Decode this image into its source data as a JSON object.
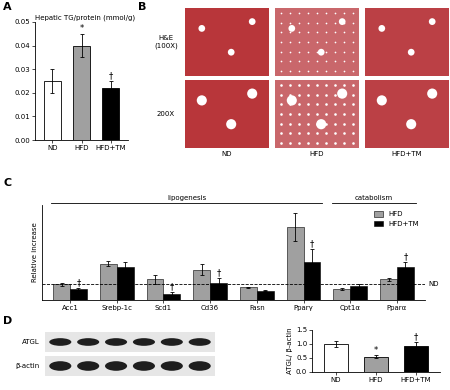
{
  "panel_labels": [
    "A",
    "B",
    "C",
    "D"
  ],
  "chart_data": [
    {
      "type": "bar",
      "title": "Hepatic TG/protein (mmol/g)",
      "categories": [
        "ND",
        "HFD",
        "HFD+TM"
      ],
      "values": [
        0.025,
        0.04,
        0.022
      ],
      "errors": [
        0.005,
        0.005,
        0.003
      ],
      "colors": [
        "#ffffff",
        "#a0a0a0",
        "#000000"
      ],
      "ylim": [
        0,
        0.05
      ],
      "yticks": [
        {
          "value": 0,
          "label": "0.00"
        },
        {
          "value": 0.01,
          "label": "0.01"
        },
        {
          "value": 0.02,
          "label": "0.02"
        },
        {
          "value": 0.03,
          "label": "0.03"
        },
        {
          "value": 0.04,
          "label": "0.04"
        },
        {
          "value": 0.05,
          "label": "0.05"
        }
      ],
      "annotations": [
        {
          "category": "HFD",
          "text": "*"
        },
        {
          "category": "HFD+TM",
          "text": "†"
        }
      ]
    },
    {
      "type": "grouped_bar",
      "y_label": "Relative increase",
      "categories": [
        "Acc1",
        "Srebp-1c",
        "Scd1",
        "Cd36",
        "Fasn",
        "Pparγ",
        "Cpt1α",
        "Pparα"
      ],
      "series": [
        {
          "name": "HFD",
          "color": "#a0a0a0",
          "values": [
            1.0,
            2.3,
            1.3,
            1.9,
            0.8,
            4.6,
            0.7,
            1.3
          ],
          "errors": [
            0.1,
            0.15,
            0.3,
            0.35,
            0.05,
            0.9,
            0.05,
            0.08
          ]
        },
        {
          "name": "HFD+TM",
          "color": "#000000",
          "values": [
            0.7,
            2.1,
            0.4,
            1.1,
            0.6,
            2.4,
            0.9,
            2.1
          ],
          "errors": [
            0.05,
            0.3,
            0.1,
            0.3,
            0.05,
            0.8,
            0.1,
            0.3
          ]
        }
      ],
      "ylim": [
        0,
        6
      ],
      "tick_labels": "x",
      "legend": "upper right",
      "groups": [
        {
          "label": "lipogenesis",
          "categories": [
            "Acc1",
            "Srebp-1c",
            "Scd1",
            "Cd36",
            "Fasn",
            "Pparγ"
          ]
        },
        {
          "label": "catabolism",
          "categories": [
            "Cpt1α",
            "Pparα"
          ]
        }
      ],
      "reference_line": {
        "value": 1,
        "label": "ND"
      },
      "annotations": [
        {
          "category": "Acc1",
          "series": "HFD+TM",
          "text": "†"
        },
        {
          "category": "Scd1",
          "series": "HFD+TM",
          "text": "†"
        },
        {
          "category": "Cd36",
          "series": "HFD+TM",
          "text": "†"
        },
        {
          "category": "Pparγ",
          "series": "HFD+TM",
          "text": "†"
        },
        {
          "category": "Pparα",
          "series": "HFD+TM",
          "text": "†"
        }
      ]
    },
    {
      "type": "bar",
      "y_label": "ATGL/ β-actin",
      "categories": [
        "ND",
        "HFD",
        "HFD+TM"
      ],
      "values": [
        1.0,
        0.55,
        0.93
      ],
      "errors": [
        0.1,
        0.05,
        0.15
      ],
      "colors": [
        "#ffffff",
        "#a0a0a0",
        "#000000"
      ],
      "ylim": [
        0,
        1.5
      ],
      "yticks": [
        {
          "value": 0,
          "label": "0.0"
        },
        {
          "value": 0.5,
          "label": "0.5"
        },
        {
          "value": 1.0,
          "label": "1.0"
        },
        {
          "value": 1.5,
          "label": "1.5"
        }
      ],
      "annotations": [
        {
          "category": "HFD",
          "text": "*"
        },
        {
          "category": "HFD+TM",
          "text": "†"
        }
      ]
    }
  ],
  "histology": {
    "row_labels": [
      "H&E\n(100X)",
      "200X"
    ],
    "column_labels": [
      "ND",
      "HFD",
      "HFD+TM"
    ]
  },
  "blot": {
    "row_labels": [
      "ATGL",
      "β-actin"
    ]
  }
}
